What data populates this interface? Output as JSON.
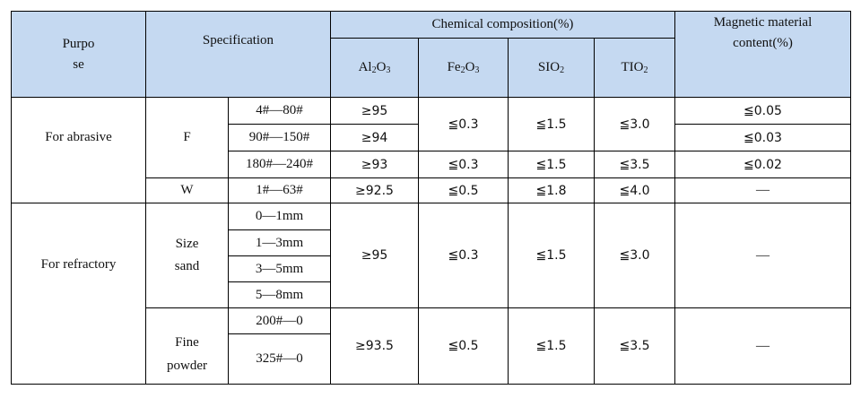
{
  "table": {
    "header": {
      "purpose_line1": "Purpo",
      "purpose_line2": "se",
      "specification": "Specification",
      "chemical": "Chemical composition(%)",
      "magnetic_line1": "Magnetic material",
      "magnetic_line2": "content(%)",
      "al2o3": {
        "a": "Al",
        "a_sub": "2",
        "b": "O",
        "b_sub": "3"
      },
      "fe2o3": {
        "a": "Fe",
        "a_sub": "2",
        "b": "O",
        "b_sub": "3"
      },
      "sio2": {
        "a": "SIO",
        "a_sub": "2"
      },
      "tio2": {
        "a": "TIO",
        "a_sub": "2"
      }
    },
    "abrasive": {
      "purpose": "For abrasive",
      "f_label": "F",
      "w_label": "W",
      "sizes": [
        "4#—80#",
        "90#—150#",
        "180#—240#",
        "1#—63#"
      ],
      "al2o3": [
        "≥95",
        "≥94",
        "≥93",
        "≥92.5"
      ],
      "fe2o3": [
        "≦0.3",
        "≦0.3",
        "≦0.5"
      ],
      "sio2": [
        "≦1.5",
        "≦1.5",
        "≦1.8"
      ],
      "tio2": [
        "≦3.0",
        "≦3.5",
        "≦4.0"
      ],
      "magnetic": [
        "≦0.05",
        "≦0.03",
        "≦0.02",
        "—"
      ]
    },
    "refractory": {
      "purpose": "For refractory",
      "size_sand_line1": "Size",
      "size_sand_line2": "sand",
      "sand_sizes": [
        "0—1mm",
        "1—3mm",
        "3—5mm",
        "5—8mm"
      ],
      "fine_powder_line1": "Fine",
      "fine_powder_line2": "powder",
      "powder_sizes": [
        "200#—0",
        "325#—0"
      ],
      "sand": {
        "al2o3": "≥95",
        "fe2o3": "≦0.3",
        "sio2": "≦1.5",
        "tio2": "≦3.0",
        "magnetic": "—"
      },
      "powder": {
        "al2o3": "≥93.5",
        "fe2o3": "≦0.5",
        "sio2": "≦1.5",
        "tio2": "≦3.5",
        "magnetic": "—"
      }
    }
  }
}
